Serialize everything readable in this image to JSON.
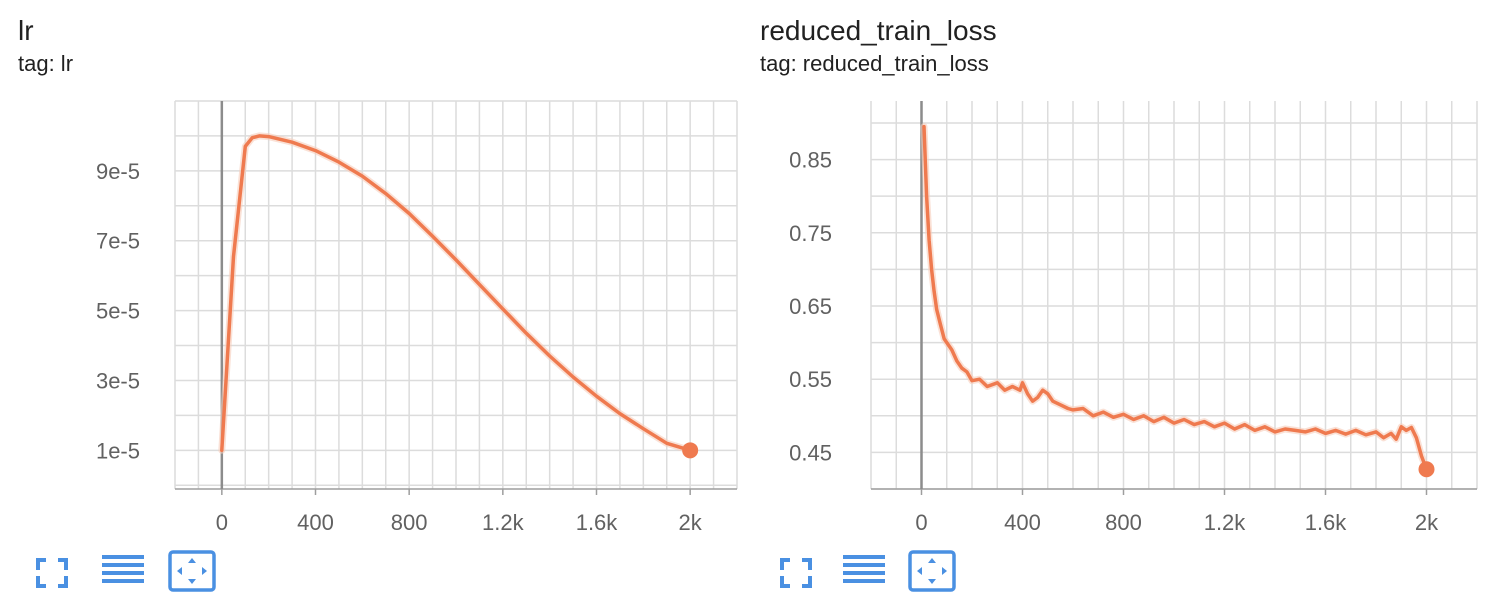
{
  "colors": {
    "series": "#ef7a4f",
    "series_raw": "#f7cdbb",
    "grid": "#dcdcdc",
    "axis": "#9e9e9e",
    "zero_line": "#8c8c8c",
    "tick_text": "#616161",
    "toolbar_icon": "#4a90e2"
  },
  "toolbar": {
    "icons": [
      "fullscreen-icon",
      "toggle-y-log-icon",
      "fit-domain-icon"
    ]
  },
  "chart_data": [
    {
      "type": "line",
      "title": "lr",
      "subtitle": "tag: lr",
      "xlabel": "",
      "ylabel": "",
      "x_ticks": [
        0,
        400,
        800,
        1200,
        1600,
        2000
      ],
      "x_tick_labels": [
        "0",
        "400",
        "800",
        "1.2k",
        "1.6k",
        "2k"
      ],
      "y_ticks": [
        1e-05,
        3e-05,
        5e-05,
        7e-05,
        9e-05
      ],
      "y_tick_labels": [
        "1e-5",
        "3e-5",
        "5e-5",
        "7e-5",
        "9e-5"
      ],
      "xlim": [
        -200,
        2200
      ],
      "ylim": [
        -1.07e-06,
        0.00011
      ],
      "grid": true,
      "series": [
        {
          "values_x": [
            0,
            50,
            100,
            130,
            160,
            200,
            300,
            400,
            500,
            600,
            700,
            800,
            900,
            1000,
            1100,
            1200,
            1300,
            1400,
            1500,
            1600,
            1700,
            1800,
            1900,
            2000
          ],
          "values_y": [
            1e-05,
            6.55e-05,
            9.7e-05,
            9.95e-05,
            0.0001,
            9.98e-05,
            9.82e-05,
            9.58e-05,
            9.25e-05,
            8.85e-05,
            8.35e-05,
            7.78e-05,
            7.13e-05,
            6.45e-05,
            5.75e-05,
            5.05e-05,
            4.35e-05,
            3.7e-05,
            3.1e-05,
            2.55e-05,
            2.05e-05,
            1.62e-05,
            1.2e-05,
            1e-05
          ]
        }
      ],
      "last_point": {
        "x": 2000,
        "y": 1e-05
      }
    },
    {
      "type": "line",
      "title": "reduced_train_loss",
      "subtitle": "tag: reduced_train_loss",
      "xlabel": "",
      "ylabel": "",
      "x_ticks": [
        0,
        400,
        800,
        1200,
        1600,
        2000
      ],
      "x_tick_labels": [
        "0",
        "400",
        "800",
        "1.2k",
        "1.6k",
        "2k"
      ],
      "y_ticks": [
        0.45,
        0.55,
        0.65,
        0.75,
        0.85
      ],
      "y_tick_labels": [
        "0.45",
        "0.55",
        "0.65",
        "0.75",
        "0.85"
      ],
      "xlim": [
        -200,
        2200
      ],
      "ylim": [
        0.4,
        0.93
      ],
      "grid": true,
      "series": [
        {
          "values_x": [
            10,
            20,
            30,
            40,
            50,
            60,
            75,
            90,
            100,
            120,
            140,
            160,
            180,
            200,
            230,
            260,
            300,
            330,
            360,
            390,
            400,
            420,
            440,
            460,
            480,
            500,
            520,
            550,
            580,
            600,
            640,
            680,
            720,
            760,
            800,
            840,
            880,
            920,
            960,
            1000,
            1040,
            1080,
            1120,
            1160,
            1200,
            1240,
            1280,
            1320,
            1360,
            1400,
            1440,
            1480,
            1520,
            1560,
            1600,
            1640,
            1680,
            1720,
            1760,
            1800,
            1830,
            1860,
            1880,
            1900,
            1920,
            1940,
            1960,
            1980,
            2000
          ],
          "values_y": [
            0.895,
            0.8,
            0.74,
            0.7,
            0.67,
            0.645,
            0.625,
            0.605,
            0.6,
            0.59,
            0.575,
            0.565,
            0.56,
            0.548,
            0.55,
            0.54,
            0.545,
            0.535,
            0.54,
            0.535,
            0.545,
            0.53,
            0.52,
            0.525,
            0.535,
            0.53,
            0.52,
            0.515,
            0.51,
            0.508,
            0.51,
            0.5,
            0.505,
            0.498,
            0.502,
            0.495,
            0.5,
            0.492,
            0.498,
            0.49,
            0.495,
            0.488,
            0.492,
            0.485,
            0.49,
            0.482,
            0.488,
            0.48,
            0.485,
            0.478,
            0.482,
            0.48,
            0.478,
            0.482,
            0.476,
            0.48,
            0.475,
            0.48,
            0.474,
            0.478,
            0.47,
            0.476,
            0.468,
            0.485,
            0.48,
            0.484,
            0.47,
            0.445,
            0.427
          ]
        }
      ],
      "last_point": {
        "x": 2000,
        "y": 0.427
      }
    }
  ]
}
